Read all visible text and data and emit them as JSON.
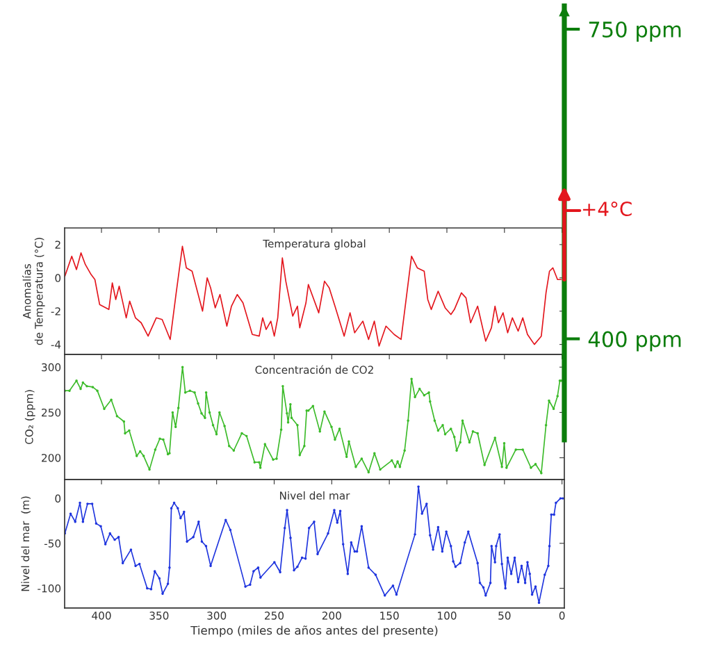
{
  "chart_data": [
    {
      "type": "line",
      "title": "Temperatura global",
      "annotations": [
        "+4°C"
      ],
      "ylabel": "Anomalías\nde Temperatura (°C)",
      "xlim": [
        432,
        -2
      ],
      "xticks": [
        400,
        350,
        300,
        250,
        200,
        150,
        100,
        50,
        0
      ],
      "ylim": [
        -4.6,
        3
      ],
      "yticks": [
        2,
        0,
        -2,
        -4
      ],
      "tick_labels": "y",
      "x": [
        431.8,
        425.8,
        421.7,
        417.8,
        414,
        409,
        405.7,
        401.6,
        393.6,
        390.6,
        387.6,
        384.6,
        378.5,
        375.5,
        370.5,
        365.5,
        359.5,
        352.4,
        347.3,
        340.3,
        335.3,
        329.7,
        326.3,
        321.3,
        312.2,
        308.2,
        305.2,
        301.2,
        297.1,
        291.1,
        287.1,
        282.1,
        277.1,
        269,
        263,
        260,
        257,
        252.9,
        249.9,
        246.9,
        242.9,
        239.9,
        233.9,
        229.8,
        227.8,
        222.4,
        220.3,
        211.3,
        206.3,
        202.2,
        197.2,
        189.2,
        184.1,
        180.1,
        173,
        168,
        163,
        158.9,
        152.9,
        145.8,
        139.8,
        130.7,
        125.7,
        119.7,
        116.6,
        113.6,
        107.6,
        101.5,
        96.5,
        93.5,
        87.4,
        83.4,
        79.4,
        73.3,
        66.3,
        61.3,
        58.2,
        55.2,
        51.2,
        47.2,
        43.1,
        38.1,
        34.1,
        30,
        24,
        18,
        13.9,
        10.9,
        7.9,
        3.9,
        0.8
      ],
      "series": [
        {
          "color": "#e3161d",
          "values": [
            0.1,
            1.3,
            0.5,
            1.5,
            0.8,
            0.2,
            -0.1,
            -1.6,
            -1.9,
            -0.3,
            -1.3,
            -0.5,
            -2.4,
            -1.4,
            -2.4,
            -2.7,
            -3.5,
            -2.4,
            -2.5,
            -3.7,
            -1.0,
            1.9,
            0.6,
            0.4,
            -2.0,
            0.0,
            -0.6,
            -1.8,
            -1.0,
            -2.9,
            -1.7,
            -1.0,
            -1.5,
            -3.4,
            -3.5,
            -2.4,
            -3.1,
            -2.6,
            -3.5,
            -2.4,
            1.2,
            -0.2,
            -2.3,
            -1.7,
            -3.0,
            -1.5,
            -0.4,
            -2.1,
            -0.2,
            -0.6,
            -1.7,
            -3.5,
            -2.1,
            -3.3,
            -2.6,
            -3.7,
            -2.6,
            -4.1,
            -2.9,
            -3.4,
            -3.7,
            1.3,
            0.6,
            0.4,
            -1.3,
            -1.9,
            -0.8,
            -1.8,
            -2.2,
            -1.9,
            -0.9,
            -1.2,
            -2.7,
            -1.7,
            -3.8,
            -3.0,
            -1.7,
            -2.7,
            -2.1,
            -3.3,
            -2.4,
            -3.2,
            -2.4,
            -3.4,
            -4.0,
            -3.5,
            -0.9,
            0.4,
            0.6,
            -0.1,
            -0.1
          ]
        }
      ]
    },
    {
      "type": "line",
      "title": "Concentración de CO2",
      "ylabel": "CO₂ (ppm)",
      "xlim": [
        432,
        -2
      ],
      "xticks": [
        400,
        350,
        300,
        250,
        200,
        150,
        100,
        50,
        0
      ],
      "ylim": [
        176,
        314
      ],
      "yticks": [
        300,
        250,
        200
      ],
      "tick_labels": "y",
      "marker": "circle",
      "x": [
        431.8,
        427.8,
        421.7,
        418.1,
        416.1,
        412.7,
        407.6,
        403.6,
        397.6,
        391.5,
        386.5,
        380.5,
        379.5,
        375.9,
        369.4,
        366.4,
        363.4,
        358.3,
        353.3,
        349.3,
        346.3,
        342.3,
        340.9,
        338.2,
        335.6,
        333.2,
        329.6,
        327.2,
        323.2,
        319.1,
        316.1,
        313.1,
        310.1,
        309.1,
        306.1,
        303.1,
        300.1,
        297.5,
        293.1,
        289.1,
        285.1,
        278.1,
        274,
        267,
        263,
        262,
        258,
        250.9,
        247.9,
        243.9,
        242.5,
        238.9,
        237.9,
        235.9,
        234.9,
        229.8,
        227.8,
        223.8,
        221.8,
        220.3,
        216.3,
        210.3,
        206.3,
        200.2,
        197.2,
        193.2,
        187.1,
        185.1,
        179.1,
        174,
        168,
        162.9,
        157.9,
        147.8,
        144.8,
        142.8,
        140.8,
        136.7,
        133.7,
        130.7,
        127.7,
        123.7,
        119.7,
        115.6,
        114.6,
        110.6,
        107.6,
        103.6,
        101.5,
        96.5,
        93.5,
        91.5,
        88.4,
        86.4,
        80.4,
        77.4,
        73.3,
        67.3,
        58.2,
        52.2,
        50.2,
        48.2,
        40.1,
        34.1,
        27,
        23,
        18,
        13.9,
        11.3,
        7.3,
        3.9,
        1.9,
        0.8
      ],
      "series": [
        {
          "color": "#3cbb2a",
          "values": [
            274,
            274,
            285,
            276,
            283,
            279,
            278,
            274,
            254,
            264,
            246,
            240,
            227,
            230,
            202,
            207,
            202,
            187,
            209,
            221,
            220,
            204,
            205,
            250,
            234,
            255,
            300,
            272,
            274,
            272,
            260,
            249,
            244,
            272,
            250,
            236,
            226,
            250,
            235,
            213,
            208,
            227,
            224,
            195,
            195,
            189,
            215,
            198,
            199,
            231,
            279,
            249,
            239,
            259,
            244,
            236,
            203,
            213,
            252,
            252,
            257,
            229,
            251,
            234,
            220,
            232,
            201,
            218,
            190,
            199,
            184,
            205,
            187,
            197,
            190,
            196,
            190,
            208,
            241,
            287,
            267,
            276,
            269,
            272,
            262,
            241,
            230,
            236,
            226,
            232,
            223,
            208,
            217,
            241,
            217,
            229,
            227,
            192,
            222,
            190,
            216,
            189,
            209,
            209,
            189,
            193,
            183,
            236,
            263,
            254,
            268,
            285,
            285
          ]
        }
      ]
    },
    {
      "type": "line",
      "title": "Nivel del mar",
      "ylabel": "Nivel del mar  (m)",
      "xlabel": "Tiempo (miles de años antes del presente)",
      "xlim": [
        432,
        -2
      ],
      "xticks": [
        400,
        350,
        300,
        250,
        200,
        150,
        100,
        50,
        0
      ],
      "ylim": [
        -122,
        21
      ],
      "yticks": [
        0,
        -50,
        -100
      ],
      "marker": "circle",
      "x": [
        431.8,
        426.8,
        422.8,
        418.7,
        416.1,
        412.1,
        408.1,
        404.6,
        400.6,
        396.6,
        392.6,
        388.5,
        385.1,
        381.5,
        374.4,
        370.4,
        367,
        360.3,
        356.9,
        353.7,
        349.7,
        346.9,
        342.3,
        340.9,
        339.3,
        336.9,
        333.7,
        331.3,
        328.3,
        325.7,
        320.2,
        315.6,
        312.8,
        309.2,
        305.2,
        292.1,
        288.1,
        275,
        270.9,
        267.9,
        263.9,
        261.9,
        249.8,
        244.8,
        240.8,
        238.8,
        235.8,
        232.8,
        229.8,
        225.8,
        222.8,
        219.7,
        215.3,
        212.3,
        203.2,
        197.8,
        195.2,
        192.6,
        190.1,
        186.1,
        183.1,
        180.1,
        178.1,
        174,
        168,
        161.9,
        153.9,
        146.8,
        143.8,
        127.7,
        124.7,
        121.6,
        117.6,
        114.6,
        112,
        107.6,
        104,
        100.5,
        96.5,
        94.5,
        92.5,
        88.4,
        84.4,
        81.4,
        73.3,
        71.3,
        68.3,
        66.3,
        62.2,
        61.2,
        58.2,
        57.2,
        54.2,
        52.2,
        49.2,
        47.2,
        44.1,
        41.1,
        38.1,
        35.1,
        32,
        30,
        28,
        26,
        23,
        20,
        15,
        11.9,
        10.9,
        9.3,
        6.9,
        5.3,
        1.3,
        -0.7
      ],
      "series": [
        {
          "color": "#1f35de",
          "values": [
            -39,
            -17,
            -26,
            -5,
            -26,
            -6,
            -6,
            -28,
            -31,
            -51,
            -39,
            -46,
            -43,
            -72,
            -57,
            -75,
            -73,
            -100,
            -101,
            -81,
            -89,
            -106,
            -95,
            -77,
            -11,
            -5,
            -11,
            -22,
            -15,
            -48,
            -43,
            -26,
            -48,
            -53,
            -75,
            -24,
            -35,
            -98,
            -96,
            -81,
            -77,
            -88,
            -71,
            -82,
            -33,
            -13,
            -44,
            -80,
            -76,
            -66,
            -67,
            -33,
            -26,
            -62,
            -39,
            -13,
            -27,
            -14,
            -51,
            -84,
            -49,
            -59,
            -59,
            -31,
            -77,
            -85,
            -108,
            -97,
            -107,
            -40,
            13,
            -17,
            -6,
            -41,
            -57,
            -32,
            -59,
            -37,
            -53,
            -70,
            -76,
            -72,
            -49,
            -37,
            -72,
            -94,
            -99,
            -108,
            -94,
            -53,
            -71,
            -53,
            -40,
            -73,
            -100,
            -66,
            -84,
            -66,
            -93,
            -75,
            -94,
            -71,
            -84,
            -107,
            -98,
            -116,
            -85,
            -75,
            -53,
            -18,
            -18,
            -5,
            0,
            0
          ]
        }
      ]
    },
    {
      "type": "bar",
      "categories": [
        null
      ],
      "ylim": [
        241,
        783
      ],
      "yticks": [
        {
          "value": 400,
          "label": "400 ppm"
        },
        {
          "value": 750,
          "label": "750 ppm"
        }
      ],
      "tick_labels": "y",
      "base": [
        283
      ],
      "color": "#0b7d0b",
      "values": [
        496
      ]
    }
  ]
}
